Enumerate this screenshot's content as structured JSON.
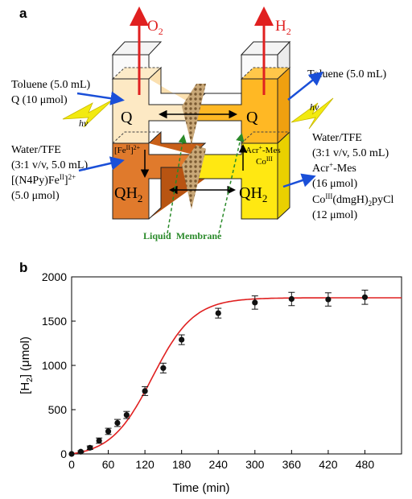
{
  "panel_a": {
    "label": "a",
    "o2": "O",
    "o2_sub": "2",
    "h2": "H",
    "h2_sub": "2",
    "left_toluene": "Toluene (5.0 mL)",
    "left_q_amount": "Q (10 μmol)",
    "hv_left": "hν",
    "hv_right": "hν",
    "left_water": "Water/TFE",
    "left_ratio": "(3:1 v/v, 5.0 mL)",
    "left_catalyst_a": "[(N4Py)Fe",
    "left_catalyst_sup": "II",
    "left_catalyst_b": "]",
    "left_catalyst_charge": "2+",
    "left_catalyst_amount": "(5.0 μmol)",
    "q_left": "Q",
    "q_right": "Q",
    "qh2_left": "QH",
    "qh2_right": "QH",
    "qh2_sub": "2",
    "fe_label": "[Fe",
    "fe_sup": "II",
    "fe_close": "]",
    "fe_charge": "2+",
    "acr_label": "Acr",
    "acr_sup": "+",
    "acr_rest": "-Mes",
    "co_label": "Co",
    "co_sup": "III",
    "right_toluene": "Toluene (5.0 mL)",
    "right_water": "Water/TFE",
    "right_ratio": "(3:1 v/v, 5.0 mL)",
    "right_acr": "Acr",
    "right_acr_sup": "+",
    "right_acr_rest": "-Mes",
    "right_acr_amount": "(16 μmol)",
    "right_co_a": "Co",
    "right_co_sup": "III",
    "right_co_b": "(dmgH)",
    "right_co_sub": "2",
    "right_co_c": "pyCl",
    "right_co_amount": "(12 μmol)",
    "liquid_membrane": "Liquid  Membrane"
  },
  "panel_b": {
    "label": "b",
    "chart_data": {
      "type": "scatter",
      "xlabel": "Time (min)",
      "ylabel_a": "[H",
      "ylabel_sub": "2",
      "ylabel_b": "] (μmol)",
      "xlim": [
        0,
        540
      ],
      "ylim": [
        0,
        2000
      ],
      "xticks": [
        0,
        60,
        120,
        180,
        240,
        300,
        360,
        420,
        480
      ],
      "yticks": [
        0,
        500,
        1000,
        1500,
        2000
      ],
      "points": [
        {
          "x": 0,
          "y": 0,
          "err": 0
        },
        {
          "x": 15,
          "y": 25,
          "err": 10
        },
        {
          "x": 30,
          "y": 70,
          "err": 20
        },
        {
          "x": 45,
          "y": 150,
          "err": 30
        },
        {
          "x": 60,
          "y": 255,
          "err": 35
        },
        {
          "x": 75,
          "y": 350,
          "err": 40
        },
        {
          "x": 90,
          "y": 440,
          "err": 40
        },
        {
          "x": 120,
          "y": 710,
          "err": 50
        },
        {
          "x": 150,
          "y": 970,
          "err": 55
        },
        {
          "x": 180,
          "y": 1290,
          "err": 55
        },
        {
          "x": 240,
          "y": 1590,
          "err": 55
        },
        {
          "x": 300,
          "y": 1710,
          "err": 75
        },
        {
          "x": 360,
          "y": 1750,
          "err": 75
        },
        {
          "x": 420,
          "y": 1745,
          "err": 75
        },
        {
          "x": 480,
          "y": 1770,
          "err": 80
        }
      ],
      "fit_color": "#e02020",
      "marker_color": "#111111"
    }
  }
}
